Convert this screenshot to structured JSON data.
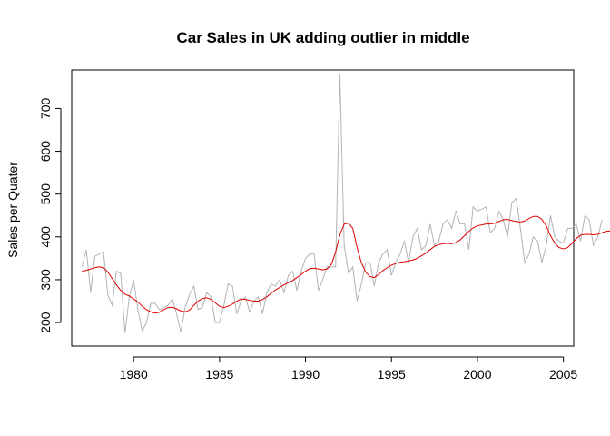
{
  "chart_data": {
    "type": "line",
    "title": "Car Sales in UK adding outlier in middle",
    "xlabel": "",
    "ylabel": "Sales per Quater",
    "xlim": [
      1976.4,
      2005.6
    ],
    "ylim": [
      145,
      790
    ],
    "x_ticks": [
      1980,
      1985,
      1990,
      1995,
      2000,
      2005
    ],
    "y_ticks": [
      200,
      300,
      400,
      500,
      600,
      700
    ],
    "grid": false,
    "series": [
      {
        "role": "raw quarterly sales",
        "color": "#b3b3b3",
        "x_start": 1977.0,
        "x_step": 0.25,
        "values": [
          330,
          370,
          270,
          355,
          360,
          365,
          265,
          240,
          320,
          315,
          175,
          260,
          300,
          230,
          180,
          200,
          245,
          245,
          230,
          235,
          240,
          255,
          220,
          178,
          235,
          265,
          285,
          230,
          235,
          270,
          260,
          200,
          200,
          240,
          290,
          285,
          220,
          250,
          260,
          225,
          250,
          260,
          220,
          270,
          290,
          285,
          300,
          270,
          310,
          320,
          275,
          320,
          350,
          360,
          360,
          275,
          300,
          330,
          330,
          330,
          780,
          380,
          315,
          330,
          250,
          290,
          340,
          340,
          285,
          340,
          360,
          370,
          310,
          340,
          360,
          390,
          340,
          400,
          420,
          370,
          380,
          430,
          380,
          390,
          430,
          440,
          420,
          460,
          430,
          430,
          370,
          470,
          460,
          465,
          470,
          410,
          420,
          460,
          440,
          400,
          480,
          490,
          420,
          340,
          360,
          400,
          390,
          340,
          380,
          450,
          400,
          390,
          385,
          420,
          420,
          430,
          390,
          450,
          440,
          380,
          400,
          440
        ]
      },
      {
        "role": "smoothed trend",
        "color": "#e00000",
        "x_start": 1977.0,
        "x_step": 0.25,
        "values": [
          320,
          322,
          325,
          328,
          330,
          328,
          318,
          303,
          288,
          275,
          266,
          262,
          255,
          248,
          238,
          230,
          225,
          222,
          224,
          230,
          235,
          236,
          232,
          227,
          225,
          229,
          240,
          250,
          256,
          258,
          254,
          246,
          238,
          235,
          238,
          243,
          250,
          255,
          254,
          252,
          250,
          250,
          254,
          260,
          268,
          276,
          282,
          288,
          293,
          298,
          305,
          312,
          320,
          326,
          327,
          325,
          323,
          325,
          335,
          365,
          405,
          430,
          432,
          420,
          375,
          340,
          318,
          307,
          305,
          312,
          321,
          328,
          334,
          338,
          341,
          342,
          344,
          346,
          350,
          356,
          362,
          370,
          378,
          382,
          384,
          385,
          384,
          387,
          393,
          403,
          413,
          421,
          426,
          428,
          430,
          430,
          432,
          436,
          440,
          441,
          438,
          436,
          435,
          437,
          443,
          448,
          448,
          441,
          426,
          403,
          385,
          375,
          372,
          375,
          385,
          396,
          404,
          406,
          406,
          405,
          406,
          410,
          413,
          414,
          413,
          410,
          408,
          406,
          404
        ]
      }
    ]
  }
}
